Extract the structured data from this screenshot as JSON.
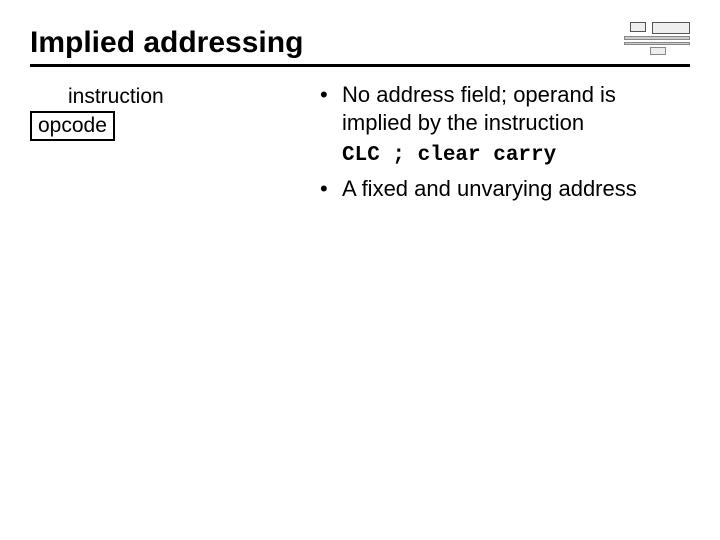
{
  "title": "Implied addressing",
  "left": {
    "instruction_label": "instruction",
    "opcode_label": "opcode"
  },
  "bullets": {
    "b1": "No address field; operand is implied by the instruction",
    "code": "CLC ; clear carry",
    "b2": "A fixed and unvarying address"
  },
  "colors": {
    "text": "#000000",
    "background": "#ffffff",
    "rule": "#000000"
  },
  "fonts": {
    "title_size_pt": 22,
    "body_size_pt": 17,
    "code_family": "Courier New",
    "body_family": "Trebuchet MS"
  }
}
